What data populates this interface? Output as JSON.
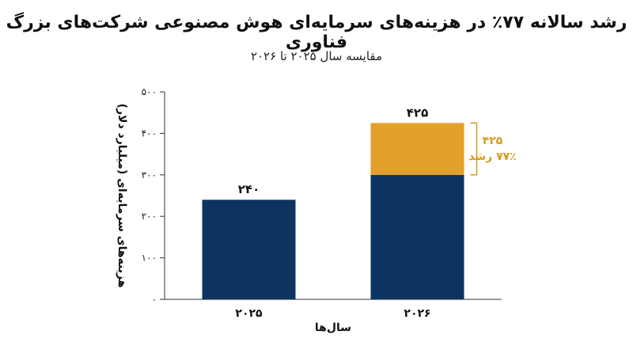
{
  "chart_data": {
    "type": "bar",
    "title": "رشد سالانه ۷۷٪ در هزینه‌های سرمایه‌ای هوش مصنوعی شرکت‌های بزرگ فناوری",
    "subtitle": "مقایسه سال ۲۰۲۵ تا ۲۰۲۶",
    "xlabel": "سال‌ها",
    "ylabel": "هزینه‌های سرمایه‌ای (میلیارد دلار)",
    "categories": [
      "۲۰۲۵",
      "۲۰۲۶"
    ],
    "ylim": [
      0,
      500
    ],
    "yticks": [
      0,
      100,
      200,
      300,
      400,
      500
    ],
    "ytick_labels": [
      "۰",
      "۱۰۰",
      "۲۰۰",
      "۳۰۰",
      "۴۰۰",
      "۵۰۰"
    ],
    "grid": false,
    "series": [
      {
        "values": [
          240,
          300
        ],
        "color": "#0d3461"
      },
      {
        "values": [
          0,
          125
        ],
        "color": "#e3a02a"
      }
    ],
    "totals": [
      240,
      425
    ],
    "total_labels": [
      "۲۴۰",
      "۴۲۵"
    ],
    "annotation": {
      "bracket_from": 300,
      "bracket_to": 425,
      "value": "۴۲۵",
      "text": "۷۷٪ رشد",
      "color": "#d89a1e"
    }
  }
}
